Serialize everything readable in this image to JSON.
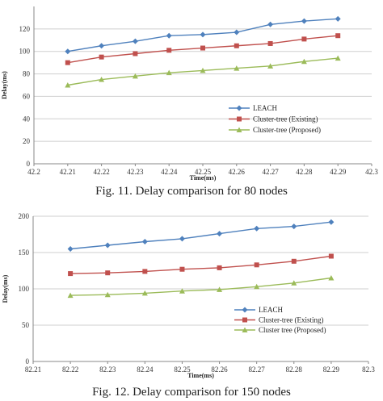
{
  "chart_data": [
    {
      "type": "line",
      "caption": "Fig. 11. Delay comparison for 80 nodes",
      "xlabel": "Time(ms)",
      "ylabel": "Delay(ms)",
      "xlim": [
        42.2,
        42.3
      ],
      "ylim": [
        0,
        140
      ],
      "x_ticks": [
        "42.2",
        "42.21",
        "42.22",
        "42.23",
        "42.24",
        "42.25",
        "42.26",
        "42.27",
        "42.28",
        "42.29",
        "42.3"
      ],
      "y_ticks": [
        "0",
        "20",
        "40",
        "60",
        "80",
        "100",
        "120"
      ],
      "grid": "horizontal",
      "legend_position": "right",
      "x": [
        42.21,
        42.22,
        42.23,
        42.24,
        42.25,
        42.26,
        42.27,
        42.28,
        42.29
      ],
      "series": [
        {
          "name": "LEACH",
          "color": "#4F81BD",
          "marker": "diamond",
          "values": [
            100,
            105,
            109,
            114,
            115,
            117,
            124,
            127,
            129
          ]
        },
        {
          "name": "Cluster-tree (Existing)",
          "color": "#C0504D",
          "marker": "square",
          "values": [
            90,
            95,
            98,
            101,
            103,
            105,
            107,
            111,
            114
          ]
        },
        {
          "name": "Cluster-tree (Proposed)",
          "color": "#9BBB59",
          "marker": "triangle",
          "values": [
            70,
            75,
            78,
            81,
            83,
            85,
            87,
            91,
            94
          ]
        }
      ]
    },
    {
      "type": "line",
      "caption": "Fig. 12. Delay comparison for 150 nodes",
      "xlabel": "Time(ms)",
      "ylabel": "Delay(ms)",
      "xlim": [
        82.21,
        82.3
      ],
      "ylim": [
        0,
        200
      ],
      "x_ticks": [
        "82.21",
        "82.22",
        "82.23",
        "82.24",
        "82.25",
        "82.26",
        "82.27",
        "82.28",
        "82.29",
        "82.3"
      ],
      "y_ticks": [
        "0",
        "50",
        "100",
        "150",
        "200"
      ],
      "grid": "horizontal",
      "legend_position": "right",
      "x": [
        82.22,
        82.23,
        82.24,
        82.25,
        82.26,
        82.27,
        82.28,
        82.29
      ],
      "series": [
        {
          "name": "LEACH",
          "color": "#4F81BD",
          "marker": "diamond",
          "values": [
            155,
            160,
            165,
            169,
            176,
            183,
            186,
            192
          ]
        },
        {
          "name": "Cluster-tree (Existing)",
          "color": "#C0504D",
          "marker": "square",
          "values": [
            121,
            122,
            124,
            127,
            129,
            133,
            138,
            145
          ]
        },
        {
          "name": "Cluster tree (Proposed)",
          "color": "#9BBB59",
          "marker": "triangle",
          "values": [
            91,
            92,
            94,
            97,
            99,
            103,
            108,
            115
          ]
        }
      ]
    }
  ]
}
